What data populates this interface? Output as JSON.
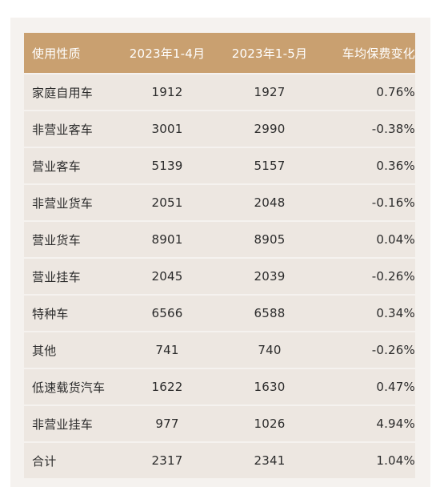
{
  "table": {
    "headers": [
      "使用性质",
      "2023年1-4月",
      "2023年1-5月",
      "车均保费变化"
    ],
    "rows": [
      [
        "家庭自用车",
        "1912",
        "1927",
        "0.76%"
      ],
      [
        "非营业客车",
        "3001",
        "2990",
        "-0.38%"
      ],
      [
        "营业客车",
        "5139",
        "5157",
        "0.36%"
      ],
      [
        "非营业货车",
        "2051",
        "2048",
        "-0.16%"
      ],
      [
        "营业货车",
        "8901",
        "8905",
        "0.04%"
      ],
      [
        "营业挂车",
        "2045",
        "2039",
        "-0.26%"
      ],
      [
        "特种车",
        "6566",
        "6588",
        "0.34%"
      ],
      [
        "其他",
        "741",
        "740",
        "-0.26%"
      ],
      [
        "低速载货汽车",
        "1622",
        "1630",
        "0.47%"
      ],
      [
        "非营业挂车",
        "977",
        "1026",
        "4.94%"
      ],
      [
        "合计",
        "2317",
        "2341",
        "1.04%"
      ]
    ]
  },
  "colors": {
    "header_bg": "#c9a070",
    "row_bg": "#ede7e1",
    "sheet_bg": "#f5f2ef"
  }
}
